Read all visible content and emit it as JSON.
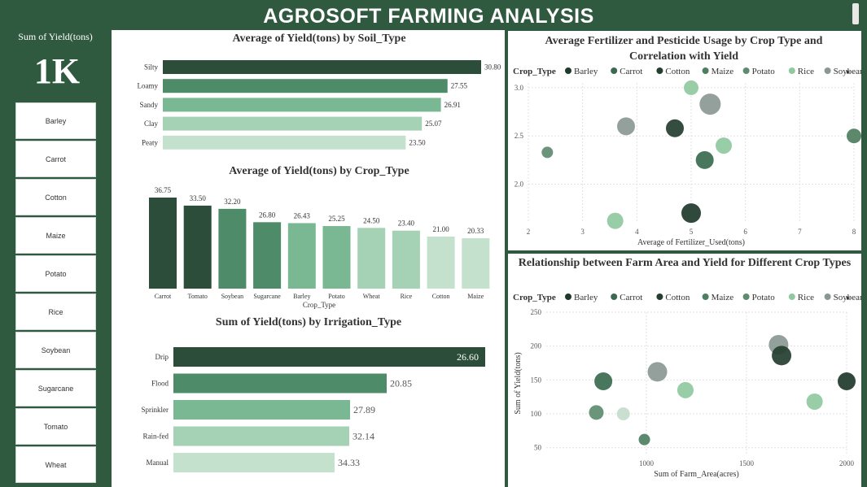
{
  "header": {
    "title": "AGROSOFT FARMING ANALYSIS"
  },
  "kpi": {
    "label": "Sum of Yield(tons)",
    "value": "1K"
  },
  "slicer": {
    "items": [
      "Barley",
      "Carrot",
      "Cotton",
      "Maize",
      "Potato",
      "Rice",
      "Soybean",
      "Sugarcane",
      "Tomato",
      "Wheat"
    ]
  },
  "colors": {
    "background": "#2f5a3f",
    "bar_scale": [
      "#2b4d3a",
      "#3a6b4f",
      "#4e8c69",
      "#7ab893",
      "#a5d2b4",
      "#c3e1cd"
    ],
    "crop": {
      "Barley": "#1f3a2c",
      "Carrot": "#3a6b4f",
      "Cotton": "#243e30",
      "Maize": "#4e7e60",
      "Potato": "#5d8c70",
      "Rice": "#8fc9a0",
      "Soybean": "#8a9892",
      "Sugarcane": "#c6dccd",
      "Tomato": "#2b4d3a"
    }
  },
  "chart_data": [
    {
      "id": "soil",
      "type": "bar",
      "orientation": "horizontal",
      "title": "Average of Yield(tons) by Soil_Type",
      "categories": [
        "Silty",
        "Loamy",
        "Sandy",
        "Clay",
        "Peaty"
      ],
      "values": [
        30.8,
        27.55,
        26.91,
        25.07,
        23.5
      ],
      "labels": [
        "30.80",
        "27.55",
        "26.91",
        "25.07",
        "23.50"
      ],
      "xlim": [
        0,
        30.8
      ]
    },
    {
      "id": "crop",
      "type": "bar",
      "orientation": "vertical",
      "title": "Average of Yield(tons) by Crop_Type",
      "xlabel": "Crop_Type",
      "categories": [
        "Carrot",
        "Tomato",
        "Soybean",
        "Sugarcane",
        "Barley",
        "Potato",
        "Wheat",
        "Rice",
        "Cotton",
        "Maize"
      ],
      "values": [
        36.75,
        33.5,
        32.2,
        26.8,
        26.43,
        25.25,
        24.5,
        23.4,
        21.0,
        20.33
      ],
      "labels": [
        "36.75",
        "33.50",
        "32.20",
        "26.80",
        "26.43",
        "25.25",
        "24.50",
        "23.40",
        "21.00",
        "20.33"
      ],
      "ylim": [
        0,
        36.75
      ]
    },
    {
      "id": "irrigation",
      "type": "bar",
      "orientation": "horizontal",
      "title": "Sum of Yield(tons) by Irrigation_Type",
      "categories": [
        "Drip",
        "Flood",
        "Sprinkler",
        "Rain-fed",
        "Manual"
      ],
      "values": [
        26.6,
        20.85,
        27.89,
        32.14,
        34.33
      ],
      "labels": [
        "26.60",
        "20.85",
        "27.89",
        "32.14",
        "34.33"
      ],
      "highlight_first": true
    },
    {
      "id": "fertilizer",
      "type": "scatter",
      "title": "Average Fertilizer and Pesticide Usage by Crop Type and Correlation with Yield",
      "xlabel": "Average of Fertilizer_Used(tons)",
      "ylabel": "",
      "legend_title": "Crop_Type",
      "legend": [
        "Barley",
        "Carrot",
        "Cotton",
        "Maize",
        "Potato",
        "Rice",
        "Soybean"
      ],
      "legend_more": "▸",
      "xlim": [
        2,
        8
      ],
      "ylim": [
        1.6,
        3.05
      ],
      "xticks": [
        2,
        3,
        4,
        5,
        6,
        7,
        8
      ],
      "yticks": [
        2.0,
        2.5,
        3.0
      ],
      "ytick_labels": [
        "2.0",
        "2.5",
        "3.0"
      ],
      "grid": true,
      "points": [
        {
          "crop": "Rice",
          "x": 5.0,
          "y": 3.0,
          "r": 9
        },
        {
          "crop": "Soybean",
          "x": 5.35,
          "y": 2.83,
          "r": 13
        },
        {
          "crop": "Soybean",
          "x": 3.8,
          "y": 2.6,
          "r": 11
        },
        {
          "crop": "Cotton",
          "x": 4.7,
          "y": 2.58,
          "r": 11
        },
        {
          "crop": "Maize",
          "x": 8.0,
          "y": 2.5,
          "r": 9
        },
        {
          "crop": "Potato",
          "x": 2.35,
          "y": 2.33,
          "r": 7
        },
        {
          "crop": "Rice",
          "x": 5.6,
          "y": 2.4,
          "r": 10
        },
        {
          "crop": "Carrot",
          "x": 5.25,
          "y": 2.25,
          "r": 11
        },
        {
          "crop": "Barley",
          "x": 5.0,
          "y": 1.7,
          "r": 12
        },
        {
          "crop": "Rice",
          "x": 3.6,
          "y": 1.62,
          "r": 10
        }
      ]
    },
    {
      "id": "farmarea",
      "type": "scatter",
      "title": "Relationship between Farm Area and Yield for Different Crop Types",
      "xlabel": "Sum of Farm_Area(acres)",
      "ylabel": "Sum of Yield(tons)",
      "legend_title": "Crop_Type",
      "legend": [
        "Barley",
        "Carrot",
        "Cotton",
        "Maize",
        "Potato",
        "Rice",
        "Soybean"
      ],
      "legend_more": "▸",
      "xlim": [
        500,
        2000
      ],
      "ylim": [
        40,
        250
      ],
      "xticks": [
        1000,
        1500,
        2000
      ],
      "yticks": [
        50,
        100,
        150,
        200,
        250
      ],
      "grid": true,
      "points": [
        {
          "crop": "Soybean",
          "x": 1660,
          "y": 202,
          "r": 12
        },
        {
          "crop": "Cotton",
          "x": 1675,
          "y": 186,
          "r": 12
        },
        {
          "crop": "Soybean",
          "x": 1055,
          "y": 162,
          "r": 12
        },
        {
          "crop": "Carrot",
          "x": 785,
          "y": 148,
          "r": 11
        },
        {
          "crop": "Barley",
          "x": 2000,
          "y": 148,
          "r": 11
        },
        {
          "crop": "Rice",
          "x": 1195,
          "y": 135,
          "r": 10
        },
        {
          "crop": "Rice",
          "x": 1840,
          "y": 118,
          "r": 10
        },
        {
          "crop": "Potato",
          "x": 750,
          "y": 102,
          "r": 9
        },
        {
          "crop": "Sugarcane",
          "x": 885,
          "y": 100,
          "r": 8
        },
        {
          "crop": "Maize",
          "x": 990,
          "y": 62,
          "r": 7
        }
      ]
    }
  ]
}
